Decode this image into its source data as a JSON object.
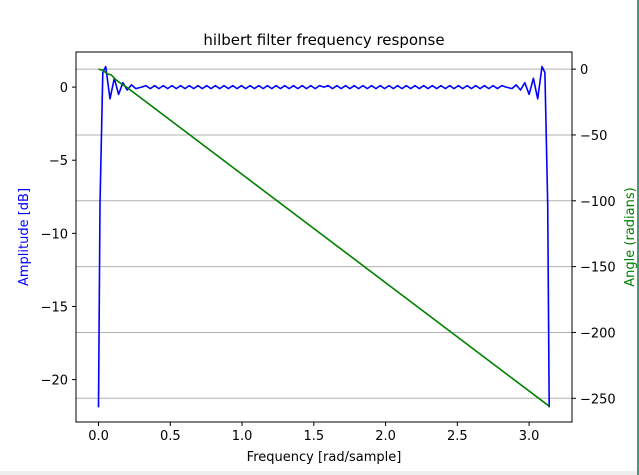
{
  "chart_data": {
    "type": "line",
    "title": "hilbert filter frequency response",
    "xlabel": "Frequency [rad/sample]",
    "ylabel_left": "Amplitude [dB]",
    "ylabel_right": "Angle (radians)",
    "xlim": [
      -0.157,
      3.299
    ],
    "ylim_left": [
      -22.9,
      2.4
    ],
    "ylim_right": [
      -268,
      13
    ],
    "x_ticks": [
      0.0,
      0.5,
      1.0,
      1.5,
      2.0,
      2.5,
      3.0
    ],
    "x_tick_labels": [
      "0.0",
      "0.5",
      "1.0",
      "1.5",
      "2.0",
      "2.5",
      "3.0"
    ],
    "y_left_ticks": [
      0,
      -5,
      -10,
      -15,
      -20
    ],
    "y_left_tick_labels": [
      "0",
      "−5",
      "−10",
      "−15",
      "−20"
    ],
    "y_right_ticks": [
      0,
      -50,
      -100,
      -150,
      -200,
      -250
    ],
    "y_right_tick_labels": [
      "0",
      "−50",
      "−100",
      "−150",
      "−200",
      "−250"
    ],
    "grid": "horizontal lines at right-axis ticks",
    "colors": {
      "amplitude": "#0000ff",
      "angle": "#008000",
      "grid": "#b0b0b0",
      "left_label": "#0000ff",
      "right_label": "#008000"
    },
    "series": [
      {
        "axis": "left",
        "color": "#0000ff",
        "x": [
          0.0,
          0.01,
          0.03,
          0.05,
          0.08,
          0.11,
          0.14,
          0.17,
          0.2,
          0.23,
          0.26,
          0.3,
          1.57,
          2.84,
          2.88,
          2.91,
          2.94,
          2.97,
          3.0,
          3.03,
          3.06,
          3.09,
          3.11,
          3.13,
          3.14
        ],
        "values": [
          -21.9,
          -8.0,
          1.0,
          1.4,
          -0.8,
          0.6,
          -0.5,
          0.3,
          -0.2,
          0.15,
          -0.1,
          0.0,
          0.0,
          0.0,
          -0.1,
          0.15,
          -0.2,
          0.3,
          -0.5,
          0.6,
          -0.8,
          1.4,
          1.0,
          -8.0,
          -21.9
        ]
      },
      {
        "axis": "right",
        "color": "#008000",
        "x": [
          0.0,
          0.03,
          0.06,
          0.09,
          0.12,
          0.15,
          0.2,
          3.14
        ],
        "values": [
          0.0,
          -1.0,
          -3.5,
          -4.5,
          -8.0,
          -10.5,
          -14.0,
          -256.0
        ]
      }
    ]
  }
}
